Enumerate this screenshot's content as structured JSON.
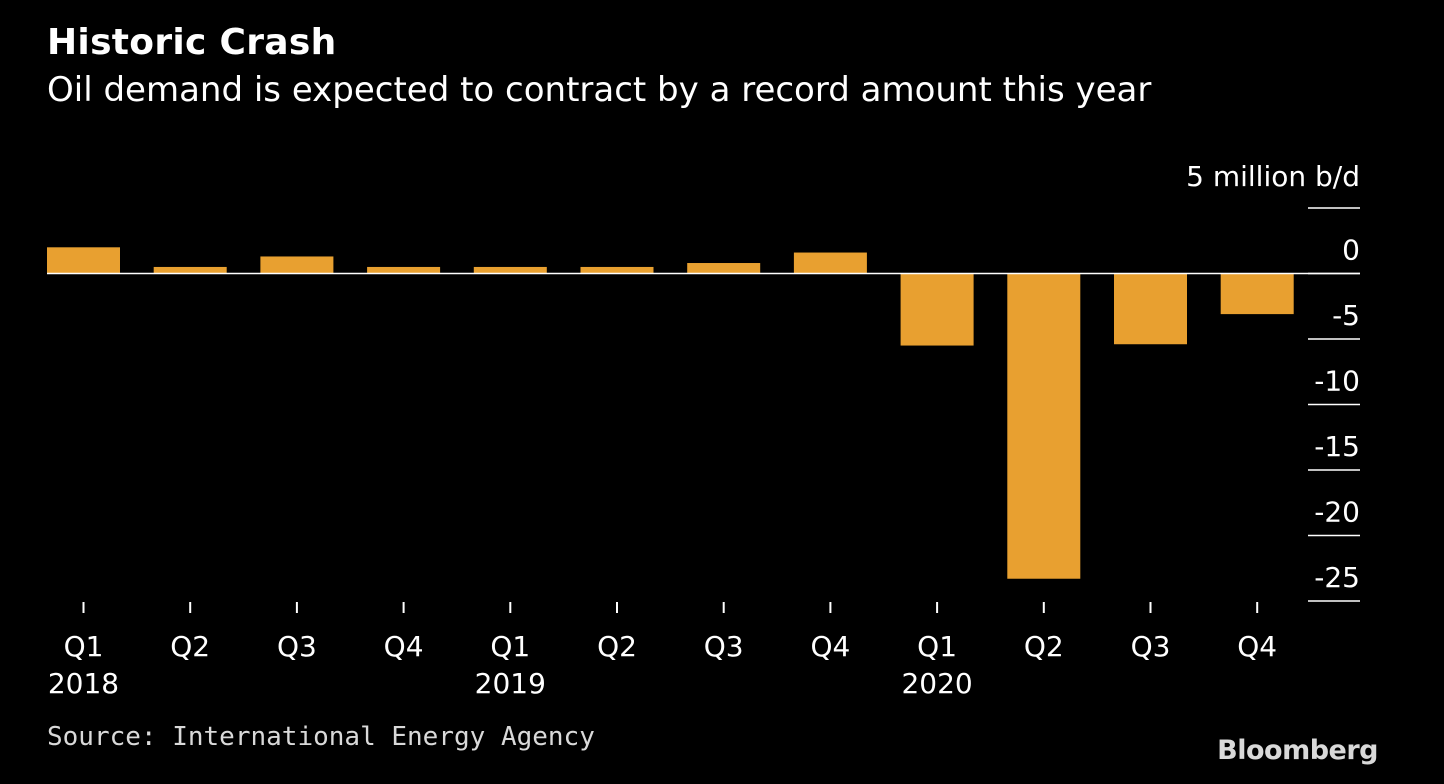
{
  "title": "Historic Crash",
  "subtitle": "Oil demand is expected to contract by a record amount this year",
  "source": "Source: International Energy Agency",
  "brand": "Bloomberg",
  "colors": {
    "background": "#000000",
    "bar": "#e8a030",
    "text": "#ffffff"
  },
  "chart_data": {
    "type": "bar",
    "unit_label": "5 million b/d",
    "categories": [
      "Q1",
      "Q2",
      "Q3",
      "Q4",
      "Q1",
      "Q2",
      "Q3",
      "Q4",
      "Q1",
      "Q2",
      "Q3",
      "Q4"
    ],
    "year_labels": [
      "2018",
      "",
      "",
      "",
      "2019",
      "",
      "",
      "",
      "2020",
      "",
      "",
      ""
    ],
    "values": [
      2.0,
      0.5,
      1.3,
      0.5,
      0.5,
      0.5,
      0.8,
      1.6,
      -5.5,
      -23.3,
      -5.4,
      -3.1
    ],
    "ylim": [
      -25,
      5
    ],
    "yticks": [
      5,
      0,
      -5,
      -10,
      -15,
      -20,
      -25
    ],
    "ytick_labels": [
      "",
      "0",
      "-5",
      "-10",
      "-15",
      "-20",
      "-25"
    ],
    "grid": false,
    "legend": "none"
  }
}
